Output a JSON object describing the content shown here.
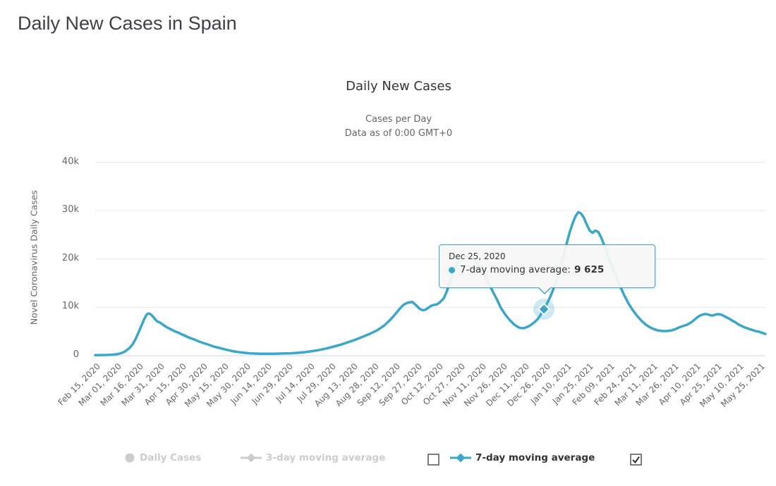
{
  "page": {
    "title": "Daily New Cases in Spain"
  },
  "chart": {
    "title": "Daily New Cases",
    "subtitle1": "Cases per Day",
    "subtitle2": "Data as of 0:00 GMT+0",
    "y_axis_title": "Novel Coronavirus Daily Cases",
    "series_color": "#3aa6c9",
    "tooltip": {
      "date": "Dec 25, 2020",
      "series_label": "7-day moving average:",
      "value": "9 625"
    }
  },
  "chart_data": {
    "type": "line",
    "title": "Daily New Cases",
    "subtitle": "Cases per Day — Data as of 0:00 GMT+0",
    "xlabel": "",
    "ylabel": "Novel Coronavirus Daily Cases",
    "ylim": [
      0,
      40000
    ],
    "grid": true,
    "legend_position": "bottom",
    "yticks": [
      {
        "label": "0",
        "value": 0
      },
      {
        "label": "10k",
        "value": 10000
      },
      {
        "label": "20k",
        "value": 20000
      },
      {
        "label": "30k",
        "value": 30000
      },
      {
        "label": "40k",
        "value": 40000
      }
    ],
    "x_tick_interval_days": 15,
    "x_total_days": 469,
    "x_tick_labels": [
      "Feb 15, 2020",
      "Mar 01, 2020",
      "Mar 16, 2020",
      "Mar 31, 2020",
      "Apr 15, 2020",
      "Apr 30, 2020",
      "May 15, 2020",
      "May 30, 2020",
      "Jun 14, 2020",
      "Jun 29, 2020",
      "Jul 14, 2020",
      "Jul 29, 2020",
      "Aug 13, 2020",
      "Aug 28, 2020",
      "Sep 12, 2020",
      "Sep 27, 2020",
      "Oct 12, 2020",
      "Oct 27, 2020",
      "Nov 11, 2020",
      "Nov 26, 2020",
      "Dec 11, 2020",
      "Dec 26, 2020",
      "Jan 10, 2021",
      "Jan 25, 2021",
      "Feb 09, 2021",
      "Feb 24, 2021",
      "Mar 11, 2021",
      "Mar 26, 2021",
      "Apr 10, 2021",
      "Apr 25, 2021",
      "May 10, 2021",
      "May 25, 2021"
    ],
    "series": [
      {
        "name": "Daily Cases",
        "visible": false,
        "color": "#cccccc",
        "marker": "circle"
      },
      {
        "name": "3-day moving average",
        "visible": false,
        "color": "#cccccc",
        "marker": "line-diamond"
      },
      {
        "name": "7-day moving average",
        "visible": true,
        "color": "#3aa6c9",
        "marker": "line-diamond",
        "points": [
          [
            0,
            120
          ],
          [
            4,
            130
          ],
          [
            8,
            150
          ],
          [
            12,
            200
          ],
          [
            15,
            300
          ],
          [
            18,
            500
          ],
          [
            21,
            900
          ],
          [
            24,
            1600
          ],
          [
            26,
            2300
          ],
          [
            28,
            3300
          ],
          [
            30,
            4600
          ],
          [
            32,
            6000
          ],
          [
            34,
            7400
          ],
          [
            35,
            8000
          ],
          [
            36,
            8500
          ],
          [
            37,
            8700
          ],
          [
            38,
            8700
          ],
          [
            39,
            8500
          ],
          [
            40,
            8200
          ],
          [
            41,
            7900
          ],
          [
            42,
            7500
          ],
          [
            43,
            7200
          ],
          [
            44,
            7000
          ],
          [
            45,
            6900
          ],
          [
            46,
            6700
          ],
          [
            48,
            6300
          ],
          [
            50,
            5900
          ],
          [
            52,
            5600
          ],
          [
            54,
            5300
          ],
          [
            56,
            5000
          ],
          [
            58,
            4800
          ],
          [
            60,
            4500
          ],
          [
            63,
            4100
          ],
          [
            66,
            3700
          ],
          [
            69,
            3400
          ],
          [
            72,
            3000
          ],
          [
            75,
            2700
          ],
          [
            78,
            2400
          ],
          [
            81,
            2100
          ],
          [
            84,
            1800
          ],
          [
            87,
            1600
          ],
          [
            90,
            1350
          ],
          [
            93,
            1150
          ],
          [
            96,
            950
          ],
          [
            99,
            800
          ],
          [
            102,
            680
          ],
          [
            105,
            580
          ],
          [
            108,
            500
          ],
          [
            112,
            440
          ],
          [
            116,
            400
          ],
          [
            120,
            390
          ],
          [
            124,
            400
          ],
          [
            128,
            420
          ],
          [
            132,
            460
          ],
          [
            137,
            500
          ],
          [
            142,
            600
          ],
          [
            147,
            750
          ],
          [
            152,
            950
          ],
          [
            157,
            1200
          ],
          [
            162,
            1500
          ],
          [
            167,
            1900
          ],
          [
            172,
            2300
          ],
          [
            177,
            2800
          ],
          [
            182,
            3300
          ],
          [
            187,
            3900
          ],
          [
            192,
            4500
          ],
          [
            197,
            5200
          ],
          [
            202,
            6200
          ],
          [
            206,
            7300
          ],
          [
            210,
            8600
          ],
          [
            213,
            9700
          ],
          [
            216,
            10600
          ],
          [
            219,
            11000
          ],
          [
            222,
            11100
          ],
          [
            225,
            10300
          ],
          [
            227,
            9700
          ],
          [
            229,
            9400
          ],
          [
            231,
            9500
          ],
          [
            233,
            9900
          ],
          [
            235,
            10300
          ],
          [
            237,
            10500
          ],
          [
            239,
            10600
          ],
          [
            241,
            11000
          ],
          [
            244,
            11900
          ],
          [
            246,
            13300
          ],
          [
            248,
            15000
          ],
          [
            250,
            16800
          ],
          [
            252,
            18300
          ],
          [
            254,
            19400
          ],
          [
            256,
            20100
          ],
          [
            258,
            20500
          ],
          [
            260,
            20600
          ],
          [
            263,
            20300
          ],
          [
            266,
            19600
          ],
          [
            269,
            18500
          ],
          [
            272,
            17000
          ],
          [
            275,
            15200
          ],
          [
            278,
            13400
          ],
          [
            281,
            11700
          ],
          [
            284,
            9800
          ],
          [
            287,
            8500
          ],
          [
            290,
            7400
          ],
          [
            293,
            6500
          ],
          [
            296,
            5900
          ],
          [
            298,
            5700
          ],
          [
            300,
            5700
          ],
          [
            302,
            5900
          ],
          [
            304,
            6200
          ],
          [
            306,
            6600
          ],
          [
            308,
            7100
          ],
          [
            310,
            7700
          ],
          [
            312,
            8600
          ],
          [
            314,
            9625
          ],
          [
            316,
            10700
          ],
          [
            318,
            11900
          ],
          [
            320,
            13300
          ],
          [
            322,
            14900
          ],
          [
            324,
            16700
          ],
          [
            326,
            18700
          ],
          [
            328,
            21000
          ],
          [
            330,
            23300
          ],
          [
            332,
            25500
          ],
          [
            334,
            27300
          ],
          [
            336,
            28800
          ],
          [
            338,
            29700
          ],
          [
            340,
            29400
          ],
          [
            342,
            28500
          ],
          [
            344,
            27100
          ],
          [
            346,
            25900
          ],
          [
            348,
            25400
          ],
          [
            350,
            25900
          ],
          [
            352,
            25600
          ],
          [
            354,
            24500
          ],
          [
            356,
            23000
          ],
          [
            358,
            21300
          ],
          [
            361,
            19000
          ],
          [
            364,
            16800
          ],
          [
            367,
            14600
          ],
          [
            370,
            12600
          ],
          [
            373,
            10900
          ],
          [
            376,
            9500
          ],
          [
            379,
            8300
          ],
          [
            382,
            7300
          ],
          [
            385,
            6500
          ],
          [
            388,
            5900
          ],
          [
            391,
            5500
          ],
          [
            394,
            5200
          ],
          [
            397,
            5100
          ],
          [
            400,
            5100
          ],
          [
            403,
            5200
          ],
          [
            406,
            5500
          ],
          [
            409,
            5900
          ],
          [
            412,
            6200
          ],
          [
            414,
            6400
          ],
          [
            416,
            6700
          ],
          [
            418,
            7100
          ],
          [
            420,
            7600
          ],
          [
            422,
            8100
          ],
          [
            424,
            8400
          ],
          [
            426,
            8600
          ],
          [
            428,
            8600
          ],
          [
            430,
            8400
          ],
          [
            432,
            8300
          ],
          [
            434,
            8500
          ],
          [
            436,
            8600
          ],
          [
            438,
            8500
          ],
          [
            440,
            8200
          ],
          [
            442,
            7900
          ],
          [
            444,
            7600
          ],
          [
            446,
            7200
          ],
          [
            448,
            6900
          ],
          [
            450,
            6500
          ],
          [
            452,
            6200
          ],
          [
            454,
            5900
          ],
          [
            456,
            5700
          ],
          [
            458,
            5500
          ],
          [
            460,
            5300
          ],
          [
            462,
            5100
          ],
          [
            464,
            5000
          ],
          [
            466,
            4800
          ],
          [
            468,
            4600
          ],
          [
            469,
            4500
          ]
        ]
      }
    ],
    "highlight_point": {
      "series": "7-day moving average",
      "date_label": "Dec 25, 2020",
      "day": 314,
      "value": 9625,
      "value_display": "9 625"
    }
  }
}
